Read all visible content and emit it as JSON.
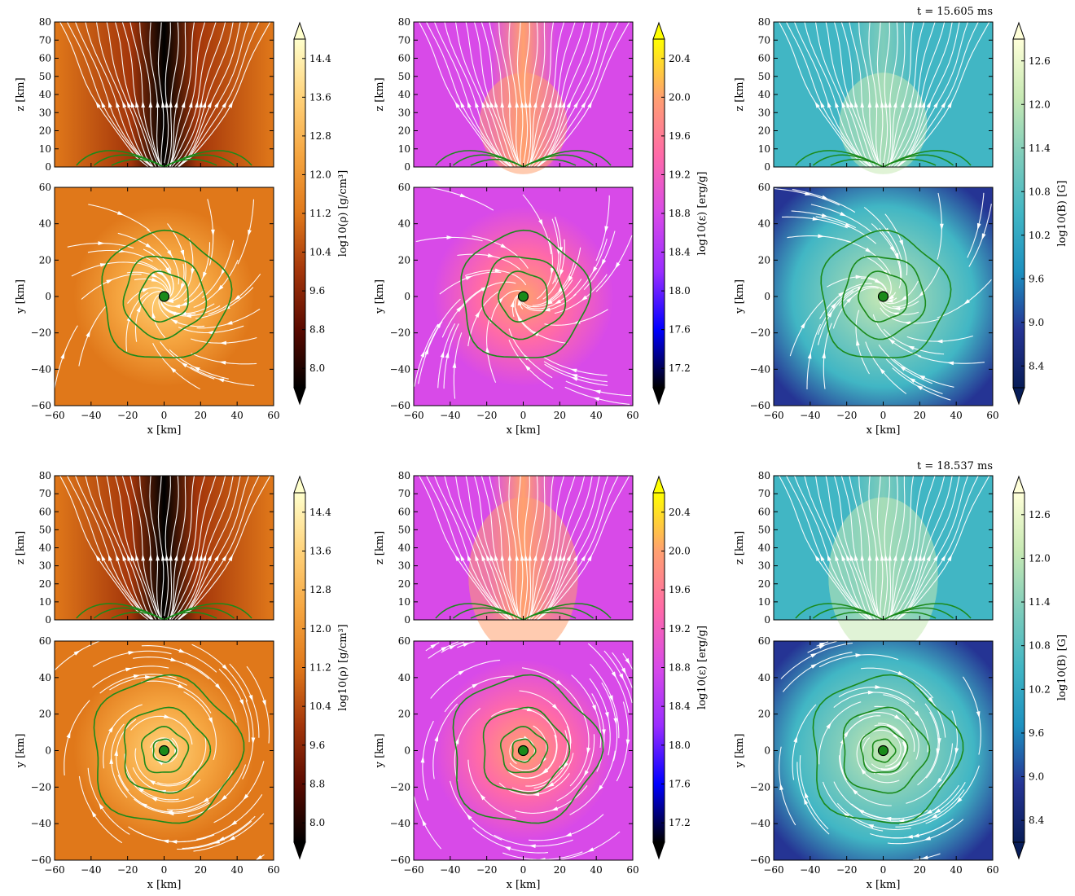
{
  "figure": {
    "rows": [
      {
        "time_label": "t = 15.605 ms",
        "columns": [
          {
            "quantity": "density",
            "colorbar": {
              "label": "log10(ρ) [g/cm³]",
              "ticks": [
                "8.0",
                "8.8",
                "9.6",
                "10.4",
                "11.2",
                "12.0",
                "12.8",
                "13.6",
                "14.4"
              ],
              "colors": [
                "#000000",
                "#5a0a00",
                "#a3350a",
                "#e0781a",
                "#f5a540",
                "#ffd27a",
                "#ffffcc"
              ]
            },
            "xz_panel": {
              "ylabel": "z [km]",
              "yticks": [
                "0",
                "10",
                "20",
                "30",
                "40",
                "50",
                "60",
                "70",
                "80"
              ]
            },
            "xy_panel": {
              "ylabel": "y [km]",
              "xlabel": "x [km]",
              "xticks": [
                "−60",
                "−40",
                "−20",
                "0",
                "20",
                "40",
                "60"
              ],
              "yticks": [
                "−60",
                "−40",
                "−20",
                "0",
                "20",
                "40",
                "60"
              ]
            }
          },
          {
            "quantity": "specific_internal_energy",
            "colorbar": {
              "label": "log10(ε) [erg/g]",
              "ticks": [
                "17.2",
                "17.6",
                "18.0",
                "18.4",
                "18.8",
                "19.2",
                "19.6",
                "20.0",
                "20.4"
              ],
              "colors": [
                "#000000",
                "#0000ff",
                "#9a2dff",
                "#d84ae8",
                "#ff6aa8",
                "#ffa070",
                "#ffff00"
              ]
            },
            "xz_panel": {
              "ylabel": "z [km]",
              "yticks": [
                "0",
                "10",
                "20",
                "30",
                "40",
                "50",
                "60",
                "70",
                "80"
              ]
            },
            "xy_panel": {
              "ylabel": "y [km]",
              "xlabel": "x [km]",
              "xticks": [
                "−60",
                "−40",
                "−20",
                "0",
                "20",
                "40",
                "60"
              ],
              "yticks": [
                "−60",
                "−40",
                "−20",
                "0",
                "20",
                "40",
                "60"
              ]
            }
          },
          {
            "quantity": "magnetic_field",
            "colorbar": {
              "label": "log10(B) [G]",
              "ticks": [
                "8.4",
                "9.0",
                "9.6",
                "10.2",
                "10.8",
                "11.4",
                "12.0",
                "12.6"
              ],
              "colors": [
                "#081d58",
                "#253494",
                "#1d91c0",
                "#41b6c4",
                "#7fcdbb",
                "#c7e9b4",
                "#ffffd9"
              ]
            },
            "xz_panel": {
              "ylabel": "z [km]",
              "yticks": [
                "0",
                "10",
                "20",
                "30",
                "40",
                "50",
                "60",
                "70",
                "80"
              ]
            },
            "xy_panel": {
              "ylabel": "y [km]",
              "xlabel": "x [km]",
              "xticks": [
                "−60",
                "−40",
                "−20",
                "0",
                "20",
                "40",
                "60"
              ],
              "yticks": [
                "−60",
                "−40",
                "−20",
                "0",
                "20",
                "40",
                "60"
              ]
            }
          }
        ]
      },
      {
        "time_label": "t = 18.537 ms",
        "columns": [
          {
            "quantity": "density",
            "colorbar": {
              "label": "log10(ρ) [g/cm³]",
              "ticks": [
                "8.0",
                "8.8",
                "9.6",
                "10.4",
                "11.2",
                "12.0",
                "12.8",
                "13.6",
                "14.4"
              ],
              "colors": [
                "#000000",
                "#5a0a00",
                "#a3350a",
                "#e0781a",
                "#f5a540",
                "#ffd27a",
                "#ffffcc"
              ]
            },
            "xz_panel": {
              "ylabel": "z [km]",
              "yticks": [
                "0",
                "10",
                "20",
                "30",
                "40",
                "50",
                "60",
                "70",
                "80"
              ]
            },
            "xy_panel": {
              "ylabel": "y [km]",
              "xlabel": "x [km]",
              "xticks": [
                "−60",
                "−40",
                "−20",
                "0",
                "20",
                "40",
                "60"
              ],
              "yticks": [
                "−60",
                "−40",
                "−20",
                "0",
                "20",
                "40",
                "60"
              ]
            }
          },
          {
            "quantity": "specific_internal_energy",
            "colorbar": {
              "label": "log10(ε) [erg/g]",
              "ticks": [
                "17.2",
                "17.6",
                "18.0",
                "18.4",
                "18.8",
                "19.2",
                "19.6",
                "20.0",
                "20.4"
              ],
              "colors": [
                "#000000",
                "#0000ff",
                "#9a2dff",
                "#d84ae8",
                "#ff6aa8",
                "#ffa070",
                "#ffff00"
              ]
            },
            "xz_panel": {
              "ylabel": "z [km]",
              "yticks": [
                "0",
                "10",
                "20",
                "30",
                "40",
                "50",
                "60",
                "70",
                "80"
              ]
            },
            "xy_panel": {
              "ylabel": "y [km]",
              "xlabel": "x [km]",
              "xticks": [
                "−60",
                "−40",
                "−20",
                "0",
                "20",
                "40",
                "60"
              ],
              "yticks": [
                "−60",
                "−40",
                "−20",
                "0",
                "20",
                "40",
                "60"
              ]
            }
          },
          {
            "quantity": "magnetic_field",
            "colorbar": {
              "label": "log10(B) [G]",
              "ticks": [
                "8.4",
                "9.0",
                "9.6",
                "10.2",
                "10.8",
                "11.4",
                "12.0",
                "12.6"
              ],
              "colors": [
                "#081d58",
                "#253494",
                "#1d91c0",
                "#41b6c4",
                "#7fcdbb",
                "#c7e9b4",
                "#ffffd9"
              ]
            },
            "xz_panel": {
              "ylabel": "z [km]",
              "yticks": [
                "0",
                "10",
                "20",
                "30",
                "40",
                "50",
                "60",
                "70",
                "80"
              ]
            },
            "xy_panel": {
              "ylabel": "y [km]",
              "xlabel": "x [km]",
              "xticks": [
                "−60",
                "−40",
                "−20",
                "0",
                "20",
                "40",
                "60"
              ],
              "yticks": [
                "−60",
                "−40",
                "−20",
                "0",
                "20",
                "40",
                "60"
              ]
            }
          }
        ]
      }
    ]
  },
  "chart_data": [
    {
      "type": "heatmap",
      "row": 1,
      "column": 1,
      "time": "t = 15.605 ms",
      "quantity": "log10(ρ) [g/cm³]",
      "panels": [
        {
          "view": "x-z",
          "xlabel": "",
          "ylabel": "z [km]",
          "xlim": [
            -60,
            60
          ],
          "ylim": [
            0,
            80
          ]
        },
        {
          "view": "x-y",
          "xlabel": "x [km]",
          "ylabel": "y [km]",
          "xlim": [
            -60,
            60
          ],
          "ylim": [
            -60,
            60
          ]
        }
      ],
      "colorbar": {
        "label": "log10(ρ) [g/cm³]",
        "range": [
          8.0,
          14.4
        ],
        "extend": "both"
      },
      "overlays": [
        "streamlines (white)",
        "contours (green)"
      ]
    },
    {
      "type": "heatmap",
      "row": 1,
      "column": 2,
      "time": "t = 15.605 ms",
      "quantity": "log10(ε) [erg/g]",
      "panels": [
        {
          "view": "x-z",
          "xlabel": "",
          "ylabel": "z [km]",
          "xlim": [
            -60,
            60
          ],
          "ylim": [
            0,
            80
          ]
        },
        {
          "view": "x-y",
          "xlabel": "x [km]",
          "ylabel": "y [km]",
          "xlim": [
            -60,
            60
          ],
          "ylim": [
            -60,
            60
          ]
        }
      ],
      "colorbar": {
        "label": "log10(ε) [erg/g]",
        "range": [
          17.2,
          20.4
        ],
        "extend": "both"
      },
      "overlays": [
        "streamlines (white)",
        "contours (green)"
      ]
    },
    {
      "type": "heatmap",
      "row": 1,
      "column": 3,
      "time": "t = 15.605 ms",
      "quantity": "log10(B) [G]",
      "panels": [
        {
          "view": "x-z",
          "xlabel": "",
          "ylabel": "z [km]",
          "xlim": [
            -60,
            60
          ],
          "ylim": [
            0,
            80
          ]
        },
        {
          "view": "x-y",
          "xlabel": "x [km]",
          "ylabel": "y [km]",
          "xlim": [
            -60,
            60
          ],
          "ylim": [
            -60,
            60
          ]
        }
      ],
      "colorbar": {
        "label": "log10(B) [G]",
        "range": [
          8.4,
          12.6
        ],
        "extend": "both"
      },
      "overlays": [
        "streamlines (white)",
        "contours (green)"
      ]
    },
    {
      "type": "heatmap",
      "row": 2,
      "column": 1,
      "time": "t = 18.537 ms",
      "quantity": "log10(ρ) [g/cm³]",
      "panels": [
        {
          "view": "x-z",
          "xlabel": "",
          "ylabel": "z [km]",
          "xlim": [
            -60,
            60
          ],
          "ylim": [
            0,
            80
          ]
        },
        {
          "view": "x-y",
          "xlabel": "x [km]",
          "ylabel": "y [km]",
          "xlim": [
            -60,
            60
          ],
          "ylim": [
            -60,
            60
          ]
        }
      ],
      "colorbar": {
        "label": "log10(ρ) [g/cm³]",
        "range": [
          8.0,
          14.4
        ],
        "extend": "both"
      },
      "overlays": [
        "streamlines (white)",
        "contours (green)"
      ]
    },
    {
      "type": "heatmap",
      "row": 2,
      "column": 2,
      "time": "t = 18.537 ms",
      "quantity": "log10(ε) [erg/g]",
      "panels": [
        {
          "view": "x-z",
          "xlabel": "",
          "ylabel": "z [km]",
          "xlim": [
            -60,
            60
          ],
          "ylim": [
            0,
            80
          ]
        },
        {
          "view": "x-y",
          "xlabel": "x [km]",
          "ylabel": "y [km]",
          "xlim": [
            -60,
            60
          ],
          "ylim": [
            -60,
            60
          ]
        }
      ],
      "colorbar": {
        "label": "log10(ε) [erg/g]",
        "range": [
          17.2,
          20.4
        ],
        "extend": "both"
      },
      "overlays": [
        "streamlines (white)",
        "contours (green)"
      ]
    },
    {
      "type": "heatmap",
      "row": 2,
      "column": 3,
      "time": "t = 18.537 ms",
      "quantity": "log10(B) [G]",
      "panels": [
        {
          "view": "x-z",
          "xlabel": "",
          "ylabel": "z [km]",
          "xlim": [
            -60,
            60
          ],
          "ylim": [
            0,
            80
          ]
        },
        {
          "view": "x-y",
          "xlabel": "x [km]",
          "ylabel": "y [km]",
          "xlim": [
            -60,
            60
          ],
          "ylim": [
            -60,
            60
          ]
        }
      ],
      "colorbar": {
        "label": "log10(B) [G]",
        "range": [
          8.4,
          12.6
        ],
        "extend": "both"
      },
      "overlays": [
        "streamlines (white)",
        "contours (green)"
      ]
    }
  ]
}
